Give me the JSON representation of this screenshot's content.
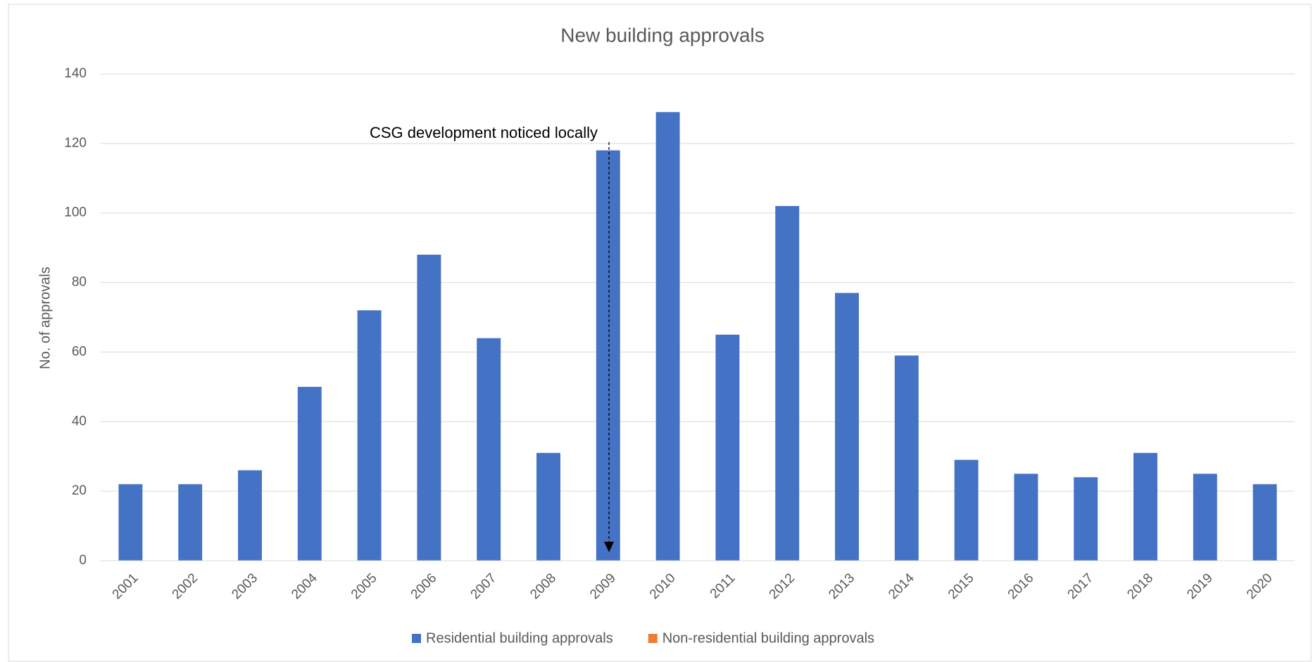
{
  "chart_data": {
    "type": "bar",
    "title": "New building approvals",
    "y_label": "No. of approvals",
    "annotation": "CSG development noticed locally",
    "categories": [
      "2001",
      "2002",
      "2003",
      "2004",
      "2005",
      "2006",
      "2007",
      "2008",
      "2009",
      "2010",
      "2011",
      "2012",
      "2013",
      "2014",
      "2015",
      "2016",
      "2017",
      "2018",
      "2019",
      "2020"
    ],
    "series": [
      {
        "name": "Residential building approvals",
        "color": "#4472c4",
        "values": [
          22,
          22,
          26,
          50,
          72,
          88,
          64,
          31,
          118,
          129,
          65,
          102,
          77,
          59,
          29,
          25,
          24,
          31,
          25,
          22
        ]
      },
      {
        "name": "Non-residential building approvals",
        "color": "#ed7d31",
        "values": [
          0,
          0,
          0,
          0,
          0,
          0,
          0,
          0,
          0,
          0,
          0,
          0,
          0,
          0,
          0,
          0,
          0,
          0,
          0,
          0
        ]
      }
    ],
    "ylim": [
      0,
      140
    ],
    "yticks": [
      0,
      20,
      40,
      60,
      80,
      100,
      120,
      140
    ],
    "grid": true,
    "legend": "bottom"
  }
}
